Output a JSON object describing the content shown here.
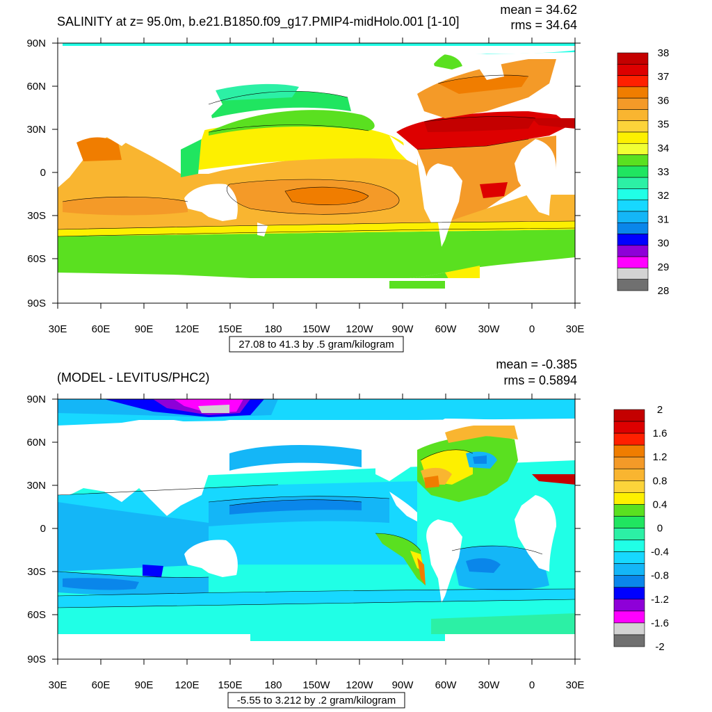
{
  "panels": [
    {
      "title": "SALINITY at z=  95.0m, b.e21.B1850.f09_g17.PMIP4-midHolo.001 [1-10]",
      "mean_text": "mean = 34.62",
      "rms_text": "rms = 34.64",
      "range_text": "27.08 to 41.3 by .5 gram/kilogram",
      "lat_labels": [
        "90N",
        "60N",
        "30N",
        "0",
        "30S",
        "60S",
        "90S"
      ],
      "lon_labels": [
        "30E",
        "60E",
        "90E",
        "120E",
        "150E",
        "180",
        "150W",
        "120W",
        "90W",
        "60W",
        "30W",
        "0",
        "30E"
      ],
      "colorbar": {
        "labels": [
          "38",
          "37",
          "36",
          "35",
          "34",
          "33",
          "32",
          "31",
          "30",
          "29",
          "28"
        ],
        "colors": [
          "#c40000",
          "#dd0000",
          "#ff2000",
          "#f07d00",
          "#f49a28",
          "#f9b530",
          "#fcd43a",
          "#fdf000",
          "#f1ff33",
          "#5ae020",
          "#20e560",
          "#2cf0a5",
          "#20ffe6",
          "#17d8ff",
          "#14b6f7",
          "#0a86ea",
          "#0000ff",
          "#8e00d8",
          "#ff00ff",
          "#d3d3d3",
          "#707070"
        ]
      }
    },
    {
      "title": "(MODEL - LEVITUS/PHC2)",
      "mean_text": "mean = -0.385",
      "rms_text": "rms = 0.5894",
      "range_text": "-5.55 to 3.212 by .2 gram/kilogram",
      "lat_labels": [
        "90N",
        "60N",
        "30N",
        "0",
        "30S",
        "60S",
        "90S"
      ],
      "lon_labels": [
        "30E",
        "60E",
        "90E",
        "120E",
        "150E",
        "180",
        "150W",
        "120W",
        "90W",
        "60W",
        "30W",
        "0",
        "30E"
      ],
      "colorbar": {
        "labels": [
          "2",
          "1.6",
          "1.2",
          "0.8",
          "0.4",
          "0",
          "-0.4",
          "-0.8",
          "-1.2",
          "-1.6",
          "-2"
        ],
        "colors": [
          "#c40000",
          "#dd0000",
          "#ff2000",
          "#f07d00",
          "#f49a28",
          "#f9b530",
          "#fcd43a",
          "#fdf000",
          "#5ae020",
          "#20e560",
          "#2cf0a5",
          "#20ffe6",
          "#17d8ff",
          "#14b6f7",
          "#0a86ea",
          "#0000ff",
          "#8e00d8",
          "#ff00ff",
          "#d3d3d3",
          "#707070"
        ]
      }
    }
  ]
}
